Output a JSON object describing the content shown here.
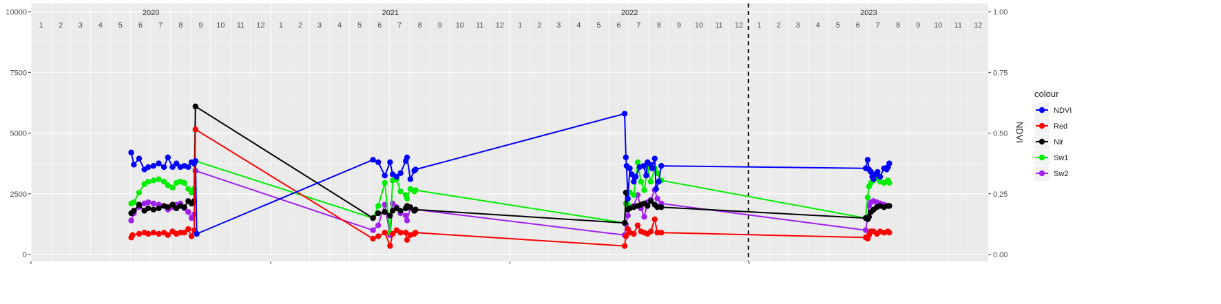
{
  "chart_data": {
    "type": "line",
    "years": [
      "2020",
      "2021",
      "2022",
      "2023"
    ],
    "months": [
      "1",
      "2",
      "3",
      "4",
      "5",
      "6",
      "7",
      "8",
      "9",
      "10",
      "11",
      "12"
    ],
    "y_left": {
      "ylim": [
        0,
        10000
      ],
      "ticks": [
        "0",
        "2500",
        "5000",
        "7500",
        "10000"
      ],
      "tick_values": [
        0,
        2500,
        5000,
        7500,
        10000
      ]
    },
    "y_right": {
      "label": "NDVI",
      "ylim": [
        0,
        1
      ],
      "ticks": [
        "0.00",
        "0.25",
        "0.50",
        "0.75",
        "1.00"
      ],
      "tick_values": [
        0,
        0.25,
        0.5,
        0.75,
        1.0
      ]
    },
    "vline": {
      "x": "2022-12-31",
      "style": "dashed"
    },
    "grid": true,
    "legend": {
      "title": "colour",
      "position": "right",
      "entries": [
        "NDVI",
        "Red",
        "Nir",
        "Sw1",
        "Sw2"
      ]
    },
    "series": [
      {
        "name": "NDVI",
        "color": "#0000ff",
        "points": [
          [
            "2020-06-02",
            4200
          ],
          [
            "2020-06-06",
            3700
          ],
          [
            "2020-06-14",
            3950
          ],
          [
            "2020-06-22",
            3500
          ],
          [
            "2020-06-28",
            3600
          ],
          [
            "2020-07-06",
            3650
          ],
          [
            "2020-07-14",
            3750
          ],
          [
            "2020-07-22",
            3600
          ],
          [
            "2020-07-28",
            4000
          ],
          [
            "2020-08-04",
            3600
          ],
          [
            "2020-08-10",
            3750
          ],
          [
            "2020-08-16",
            3600
          ],
          [
            "2020-08-22",
            3650
          ],
          [
            "2020-08-28",
            3600
          ],
          [
            "2020-09-02",
            3800
          ],
          [
            "2020-09-06",
            3750
          ],
          [
            "2020-09-08",
            3850
          ],
          [
            "2020-09-10",
            850
          ],
          [
            "2021-06-06",
            3900
          ],
          [
            "2021-06-14",
            3800
          ],
          [
            "2021-06-24",
            3250
          ],
          [
            "2021-07-02",
            3800
          ],
          [
            "2021-07-06",
            3300
          ],
          [
            "2021-07-12",
            3200
          ],
          [
            "2021-07-18",
            3350
          ],
          [
            "2021-07-26",
            3850
          ],
          [
            "2021-07-28",
            4000
          ],
          [
            "2021-08-02",
            3100
          ],
          [
            "2021-08-08",
            3450
          ],
          [
            "2021-08-10",
            3500
          ],
          [
            "2022-06-25",
            5800
          ],
          [
            "2022-06-27",
            4000
          ],
          [
            "2022-06-28",
            3650
          ],
          [
            "2022-06-30",
            2300
          ],
          [
            "2022-07-03",
            3550
          ],
          [
            "2022-07-06",
            3300
          ],
          [
            "2022-07-09",
            3000
          ],
          [
            "2022-07-12",
            3200
          ],
          [
            "2022-07-18",
            3600
          ],
          [
            "2022-07-24",
            3650
          ],
          [
            "2022-07-28",
            3250
          ],
          [
            "2022-07-30",
            3800
          ],
          [
            "2022-08-04",
            3700
          ],
          [
            "2022-08-06",
            3550
          ],
          [
            "2022-08-10",
            3950
          ],
          [
            "2022-08-12",
            2700
          ],
          [
            "2022-08-16",
            3000
          ],
          [
            "2022-08-20",
            3650
          ],
          [
            "2023-06-28",
            3550
          ],
          [
            "2023-07-01",
            3900
          ],
          [
            "2023-07-03",
            3500
          ],
          [
            "2023-07-06",
            3400
          ],
          [
            "2023-07-08",
            3200
          ],
          [
            "2023-07-10",
            3100
          ],
          [
            "2023-07-13",
            3300
          ],
          [
            "2023-07-16",
            3400
          ],
          [
            "2023-07-20",
            3200
          ],
          [
            "2023-07-26",
            3550
          ],
          [
            "2023-07-30",
            3500
          ],
          [
            "2023-08-01",
            3600
          ],
          [
            "2023-08-03",
            3750
          ]
        ]
      },
      {
        "name": "Red",
        "color": "#ff0000",
        "points": [
          [
            "2020-06-02",
            700
          ],
          [
            "2020-06-04",
            800
          ],
          [
            "2020-06-14",
            850
          ],
          [
            "2020-06-22",
            900
          ],
          [
            "2020-06-28",
            850
          ],
          [
            "2020-07-06",
            900
          ],
          [
            "2020-07-14",
            850
          ],
          [
            "2020-07-22",
            900
          ],
          [
            "2020-07-28",
            800
          ],
          [
            "2020-08-04",
            950
          ],
          [
            "2020-08-10",
            850
          ],
          [
            "2020-08-16",
            900
          ],
          [
            "2020-08-22",
            900
          ],
          [
            "2020-08-28",
            1050
          ],
          [
            "2020-09-02",
            750
          ],
          [
            "2020-09-06",
            1000
          ],
          [
            "2020-09-08",
            5150
          ],
          [
            "2021-06-06",
            650
          ],
          [
            "2021-06-14",
            750
          ],
          [
            "2021-06-24",
            900
          ],
          [
            "2021-07-02",
            350
          ],
          [
            "2021-07-06",
            850
          ],
          [
            "2021-07-12",
            1000
          ],
          [
            "2021-07-18",
            900
          ],
          [
            "2021-07-26",
            900
          ],
          [
            "2021-07-28",
            600
          ],
          [
            "2021-08-02",
            800
          ],
          [
            "2021-08-08",
            850
          ],
          [
            "2021-08-10",
            900
          ],
          [
            "2022-06-25",
            350
          ],
          [
            "2022-06-27",
            750
          ],
          [
            "2022-06-30",
            1050
          ],
          [
            "2022-07-03",
            900
          ],
          [
            "2022-07-09",
            850
          ],
          [
            "2022-07-15",
            1200
          ],
          [
            "2022-07-20",
            950
          ],
          [
            "2022-07-25",
            900
          ],
          [
            "2022-07-30",
            850
          ],
          [
            "2022-08-04",
            950
          ],
          [
            "2022-08-10",
            1450
          ],
          [
            "2022-08-14",
            900
          ],
          [
            "2022-08-20",
            900
          ],
          [
            "2023-06-28",
            700
          ],
          [
            "2023-07-01",
            650
          ],
          [
            "2023-07-03",
            800
          ],
          [
            "2023-07-06",
            950
          ],
          [
            "2023-07-10",
            950
          ],
          [
            "2023-07-15",
            850
          ],
          [
            "2023-07-20",
            950
          ],
          [
            "2023-07-26",
            900
          ],
          [
            "2023-08-01",
            950
          ],
          [
            "2023-08-03",
            900
          ]
        ]
      },
      {
        "name": "Nir",
        "color": "#000000",
        "points": [
          [
            "2020-06-02",
            1700
          ],
          [
            "2020-06-06",
            1800
          ],
          [
            "2020-06-14",
            2050
          ],
          [
            "2020-06-22",
            1800
          ],
          [
            "2020-06-28",
            1900
          ],
          [
            "2020-07-06",
            1850
          ],
          [
            "2020-07-14",
            1900
          ],
          [
            "2020-07-22",
            2000
          ],
          [
            "2020-07-28",
            1950
          ],
          [
            "2020-08-04",
            2050
          ],
          [
            "2020-08-10",
            1900
          ],
          [
            "2020-08-16",
            2000
          ],
          [
            "2020-08-22",
            1950
          ],
          [
            "2020-08-28",
            2200
          ],
          [
            "2020-09-02",
            2100
          ],
          [
            "2020-09-06",
            2200
          ],
          [
            "2020-09-08",
            6100
          ],
          [
            "2021-06-06",
            1500
          ],
          [
            "2021-06-14",
            1700
          ],
          [
            "2021-06-24",
            1750
          ],
          [
            "2021-07-02",
            1600
          ],
          [
            "2021-07-06",
            1800
          ],
          [
            "2021-07-12",
            1900
          ],
          [
            "2021-07-18",
            1800
          ],
          [
            "2021-07-26",
            1900
          ],
          [
            "2021-07-28",
            2000
          ],
          [
            "2021-08-02",
            1950
          ],
          [
            "2021-08-08",
            1800
          ],
          [
            "2021-08-10",
            1850
          ],
          [
            "2022-06-25",
            1300
          ],
          [
            "2022-06-27",
            2550
          ],
          [
            "2022-06-30",
            1850
          ],
          [
            "2022-07-03",
            1900
          ],
          [
            "2022-07-09",
            1950
          ],
          [
            "2022-07-15",
            2000
          ],
          [
            "2022-07-20",
            2050
          ],
          [
            "2022-07-25",
            2100
          ],
          [
            "2022-07-30",
            2000
          ],
          [
            "2022-08-04",
            2200
          ],
          [
            "2022-08-10",
            2050
          ],
          [
            "2022-08-14",
            1950
          ],
          [
            "2022-08-20",
            1950
          ],
          [
            "2023-06-28",
            1500
          ],
          [
            "2023-07-01",
            1450
          ],
          [
            "2023-07-03",
            1550
          ],
          [
            "2023-07-06",
            1750
          ],
          [
            "2023-07-10",
            1850
          ],
          [
            "2023-07-15",
            1950
          ],
          [
            "2023-07-20",
            2000
          ],
          [
            "2023-07-26",
            1950
          ],
          [
            "2023-08-01",
            2000
          ],
          [
            "2023-08-03",
            2000
          ]
        ]
      },
      {
        "name": "Sw1",
        "color": "#00ee00",
        "points": [
          [
            "2020-06-02",
            2100
          ],
          [
            "2020-06-06",
            2150
          ],
          [
            "2020-06-14",
            2550
          ],
          [
            "2020-06-22",
            2900
          ],
          [
            "2020-06-28",
            3000
          ],
          [
            "2020-07-06",
            3050
          ],
          [
            "2020-07-14",
            3100
          ],
          [
            "2020-07-22",
            3000
          ],
          [
            "2020-07-28",
            2850
          ],
          [
            "2020-08-04",
            2750
          ],
          [
            "2020-08-10",
            2950
          ],
          [
            "2020-08-16",
            3000
          ],
          [
            "2020-08-22",
            2950
          ],
          [
            "2020-08-28",
            2700
          ],
          [
            "2020-09-02",
            2550
          ],
          [
            "2020-09-06",
            2700
          ],
          [
            "2020-09-08",
            3850
          ],
          [
            "2021-06-06",
            1500
          ],
          [
            "2021-06-14",
            2000
          ],
          [
            "2021-06-24",
            2950
          ],
          [
            "2021-07-02",
            900
          ],
          [
            "2021-07-06",
            3050
          ],
          [
            "2021-07-12",
            3100
          ],
          [
            "2021-07-18",
            2600
          ],
          [
            "2021-07-26",
            2450
          ],
          [
            "2021-07-28",
            2300
          ],
          [
            "2021-08-02",
            2700
          ],
          [
            "2021-08-08",
            2600
          ],
          [
            "2021-08-10",
            2650
          ],
          [
            "2022-06-25",
            1300
          ],
          [
            "2022-06-27",
            2100
          ],
          [
            "2022-06-30",
            2050
          ],
          [
            "2022-07-03",
            2550
          ],
          [
            "2022-07-09",
            2450
          ],
          [
            "2022-07-15",
            3800
          ],
          [
            "2022-07-20",
            3000
          ],
          [
            "2022-07-25",
            2650
          ],
          [
            "2022-07-30",
            3550
          ],
          [
            "2022-08-04",
            3000
          ],
          [
            "2022-08-10",
            3550
          ],
          [
            "2022-08-14",
            3350
          ],
          [
            "2022-08-20",
            3050
          ],
          [
            "2023-06-28",
            1500
          ],
          [
            "2023-07-01",
            2350
          ],
          [
            "2023-07-03",
            2800
          ],
          [
            "2023-07-06",
            2950
          ],
          [
            "2023-07-10",
            3050
          ],
          [
            "2023-07-15",
            3150
          ],
          [
            "2023-07-20",
            3000
          ],
          [
            "2023-07-26",
            2950
          ],
          [
            "2023-08-01",
            3050
          ],
          [
            "2023-08-03",
            2950
          ]
        ]
      },
      {
        "name": "Sw2",
        "color": "#a020f0",
        "points": [
          [
            "2020-06-02",
            1400
          ],
          [
            "2020-06-06",
            1700
          ],
          [
            "2020-06-14",
            1950
          ],
          [
            "2020-06-22",
            2100
          ],
          [
            "2020-06-28",
            2150
          ],
          [
            "2020-07-06",
            2100
          ],
          [
            "2020-07-14",
            2050
          ],
          [
            "2020-07-22",
            2000
          ],
          [
            "2020-07-28",
            1850
          ],
          [
            "2020-08-04",
            1950
          ],
          [
            "2020-08-10",
            2050
          ],
          [
            "2020-08-16",
            2100
          ],
          [
            "2020-08-22",
            1900
          ],
          [
            "2020-08-28",
            1750
          ],
          [
            "2020-09-02",
            1500
          ],
          [
            "2020-09-06",
            1650
          ],
          [
            "2020-09-08",
            3450
          ],
          [
            "2021-06-06",
            1000
          ],
          [
            "2021-06-14",
            1200
          ],
          [
            "2021-06-24",
            2050
          ],
          [
            "2021-07-02",
            800
          ],
          [
            "2021-07-06",
            2100
          ],
          [
            "2021-07-12",
            1950
          ],
          [
            "2021-07-18",
            1700
          ],
          [
            "2021-07-26",
            1600
          ],
          [
            "2021-07-28",
            1400
          ],
          [
            "2021-08-02",
            1900
          ],
          [
            "2021-08-08",
            1800
          ],
          [
            "2021-08-10",
            1850
          ],
          [
            "2022-06-25",
            800
          ],
          [
            "2022-06-27",
            1250
          ],
          [
            "2022-06-30",
            1600
          ],
          [
            "2022-07-03",
            1950
          ],
          [
            "2022-07-09",
            2000
          ],
          [
            "2022-07-15",
            2450
          ],
          [
            "2022-07-20",
            1900
          ],
          [
            "2022-07-25",
            1550
          ],
          [
            "2022-07-30",
            2150
          ],
          [
            "2022-08-04",
            2250
          ],
          [
            "2022-08-10",
            2650
          ],
          [
            "2022-08-14",
            2300
          ],
          [
            "2022-08-20",
            2100
          ],
          [
            "2023-06-28",
            1000
          ],
          [
            "2023-07-01",
            1500
          ],
          [
            "2023-07-03",
            2000
          ],
          [
            "2023-07-06",
            2150
          ],
          [
            "2023-07-10",
            2200
          ],
          [
            "2023-07-15",
            2150
          ],
          [
            "2023-07-20",
            2100
          ],
          [
            "2023-07-26",
            2050
          ],
          [
            "2023-08-01",
            2000
          ],
          [
            "2023-08-03",
            2000
          ]
        ]
      }
    ]
  }
}
